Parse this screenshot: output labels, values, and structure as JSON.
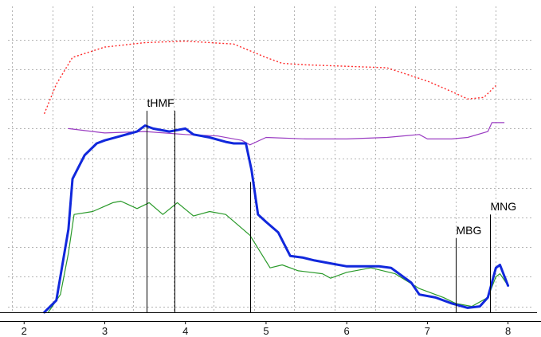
{
  "chart_data": {
    "type": "line",
    "xlim": [
      1.8,
      8.3
    ],
    "ylim": [
      0,
      100
    ],
    "grid": true,
    "x_ticks": [
      {
        "value": 2,
        "label": "2"
      },
      {
        "value": 3,
        "label": "3"
      },
      {
        "value": 4,
        "label": "4"
      },
      {
        "value": 5,
        "label": "5"
      },
      {
        "value": 6,
        "label": "6"
      },
      {
        "value": 7,
        "label": "7"
      },
      {
        "value": 8,
        "label": "8"
      }
    ],
    "markers": [
      {
        "x": 3.52,
        "top": 68,
        "label": "tHMF"
      },
      {
        "x": 3.86,
        "top": 68,
        "label": ""
      },
      {
        "x": 4.8,
        "top": 44,
        "label": ""
      },
      {
        "x": 7.35,
        "top": 25,
        "label": "MBG"
      },
      {
        "x": 7.78,
        "top": 33,
        "label": "MNG"
      }
    ],
    "series": [
      {
        "color": "#ff2a2a",
        "style": "dotted",
        "width": 1.4,
        "points": [
          [
            2.25,
            67
          ],
          [
            2.4,
            77
          ],
          [
            2.6,
            86
          ],
          [
            3.0,
            89.5
          ],
          [
            3.5,
            91
          ],
          [
            4.0,
            91.5
          ],
          [
            4.6,
            90.5
          ],
          [
            5.0,
            86
          ],
          [
            5.2,
            84
          ],
          [
            5.5,
            83.5
          ],
          [
            6.0,
            83
          ],
          [
            6.5,
            82.5
          ],
          [
            7.0,
            78
          ],
          [
            7.3,
            74.5
          ],
          [
            7.5,
            72
          ],
          [
            7.7,
            72.5
          ],
          [
            7.85,
            76.5
          ]
        ]
      },
      {
        "color": "#9a3cc2",
        "style": "solid",
        "width": 1.2,
        "points": [
          [
            2.55,
            62
          ],
          [
            3.0,
            60.5
          ],
          [
            3.5,
            61
          ],
          [
            4.0,
            60
          ],
          [
            4.4,
            59.5
          ],
          [
            4.7,
            58
          ],
          [
            4.8,
            56.5
          ],
          [
            5.0,
            59
          ],
          [
            5.5,
            58.5
          ],
          [
            6.0,
            58.5
          ],
          [
            6.5,
            59
          ],
          [
            6.9,
            60
          ],
          [
            7.0,
            58.5
          ],
          [
            7.3,
            58.5
          ],
          [
            7.5,
            59
          ],
          [
            7.75,
            61
          ],
          [
            7.8,
            64
          ],
          [
            7.95,
            64
          ]
        ]
      },
      {
        "color": "#2a9a2a",
        "style": "solid",
        "width": 1.2,
        "points": [
          [
            2.3,
            0
          ],
          [
            2.45,
            6
          ],
          [
            2.55,
            20
          ],
          [
            2.62,
            33
          ],
          [
            2.85,
            34
          ],
          [
            3.1,
            37
          ],
          [
            3.2,
            37.5
          ],
          [
            3.4,
            35
          ],
          [
            3.55,
            37
          ],
          [
            3.72,
            33
          ],
          [
            3.9,
            37
          ],
          [
            4.1,
            32.5
          ],
          [
            4.3,
            34
          ],
          [
            4.5,
            33
          ],
          [
            4.8,
            26
          ],
          [
            5.05,
            15
          ],
          [
            5.2,
            16
          ],
          [
            5.4,
            14
          ],
          [
            5.7,
            13
          ],
          [
            5.8,
            11.5
          ],
          [
            6.0,
            13.5
          ],
          [
            6.3,
            15
          ],
          [
            6.6,
            13
          ],
          [
            6.9,
            8
          ],
          [
            7.2,
            5
          ],
          [
            7.35,
            3
          ],
          [
            7.55,
            2
          ],
          [
            7.75,
            5
          ],
          [
            7.85,
            12
          ],
          [
            7.9,
            13
          ],
          [
            8.0,
            9
          ]
        ]
      },
      {
        "color": "#1128dc",
        "style": "solid",
        "width": 3,
        "points": [
          [
            2.25,
            0
          ],
          [
            2.4,
            4
          ],
          [
            2.55,
            28
          ],
          [
            2.6,
            45
          ],
          [
            2.75,
            53
          ],
          [
            2.9,
            57
          ],
          [
            3.0,
            58
          ],
          [
            3.2,
            59.5
          ],
          [
            3.4,
            61
          ],
          [
            3.5,
            63
          ],
          [
            3.6,
            62
          ],
          [
            3.8,
            61
          ],
          [
            4.0,
            62
          ],
          [
            4.1,
            60
          ],
          [
            4.3,
            59
          ],
          [
            4.5,
            57.5
          ],
          [
            4.6,
            57
          ],
          [
            4.75,
            57
          ],
          [
            4.82,
            48
          ],
          [
            4.9,
            33
          ],
          [
            5.0,
            30.5
          ],
          [
            5.15,
            27
          ],
          [
            5.3,
            19
          ],
          [
            5.45,
            18.5
          ],
          [
            5.6,
            17.5
          ],
          [
            5.8,
            16.5
          ],
          [
            6.0,
            15.5
          ],
          [
            6.2,
            15.5
          ],
          [
            6.4,
            15.5
          ],
          [
            6.55,
            15
          ],
          [
            6.8,
            10
          ],
          [
            6.9,
            6
          ],
          [
            7.1,
            5
          ],
          [
            7.3,
            3
          ],
          [
            7.5,
            1.5
          ],
          [
            7.65,
            2
          ],
          [
            7.75,
            5
          ],
          [
            7.85,
            15
          ],
          [
            7.9,
            16
          ],
          [
            8.0,
            9
          ]
        ]
      }
    ]
  }
}
